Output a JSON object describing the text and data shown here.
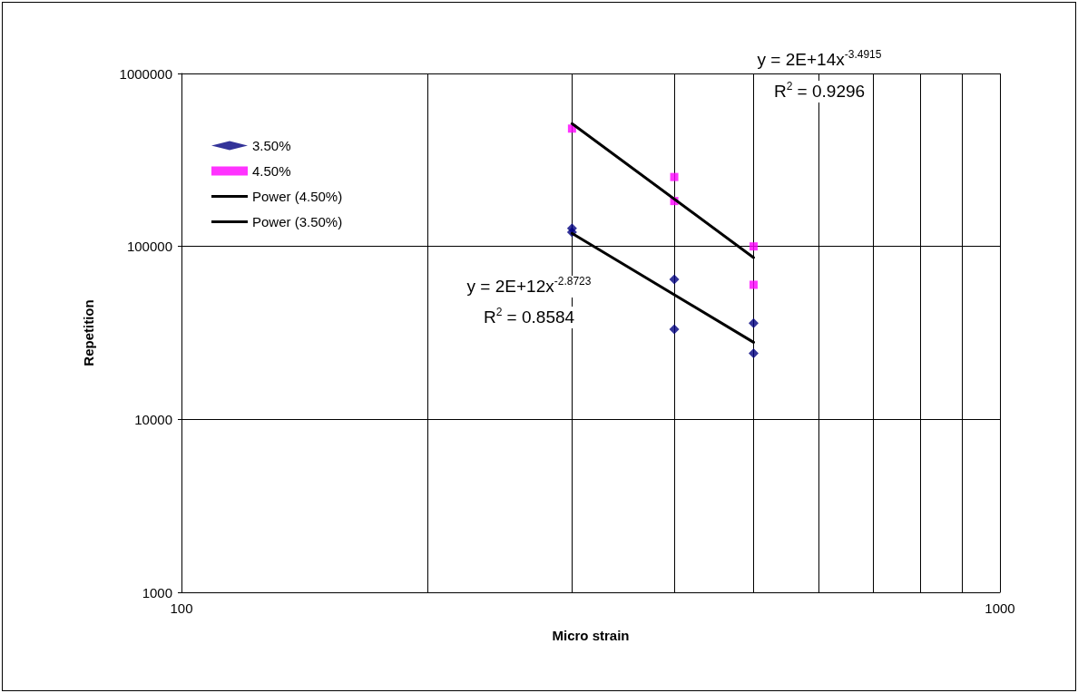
{
  "chart_data": {
    "type": "scatter",
    "xlabel": "Micro strain",
    "ylabel": "Repetition",
    "log": "xy",
    "xlim": [
      100,
      1000
    ],
    "xticks": [
      100,
      {
        "value": 200,
        "label": null
      },
      {
        "value": 300,
        "label": null
      },
      {
        "value": 400,
        "label": null
      },
      {
        "value": 500,
        "label": null
      },
      {
        "value": 600,
        "label": null
      },
      {
        "value": 700,
        "label": null
      },
      {
        "value": 800,
        "label": null
      },
      {
        "value": 900,
        "label": null
      },
      1000
    ],
    "ylim": [
      1000,
      1000000
    ],
    "yticks": [
      1000,
      10000,
      100000,
      1000000
    ],
    "grid": true,
    "legend": "top left",
    "series": [
      {
        "name": "3.50%",
        "color": "#000080",
        "marker": "diamond",
        "x": [
          300,
          300,
          400,
          400,
          500,
          500
        ],
        "values": [
          127000,
          121000,
          64500,
          33200,
          36000,
          24100
        ]
      },
      {
        "name": "4.50%",
        "color": "#ff00ff",
        "marker": "square",
        "x": [
          300,
          400,
          400,
          500,
          500
        ],
        "values": [
          480000,
          252000,
          183000,
          100000,
          60000
        ]
      },
      {
        "name": "Power (4.50%)",
        "type": "line",
        "color": "#000000",
        "marker": "none",
        "x": [
          300,
          500
        ],
        "values": [
          513000,
          86200
        ]
      },
      {
        "name": "Power (3.50%)",
        "type": "line",
        "color": "#000000",
        "marker": "none",
        "x": [
          300,
          500
        ],
        "values": [
          119000,
          27900
        ]
      }
    ],
    "annotations": [
      "y = 2E+14x$^{-3.4915}$",
      "R$^{2}$ = 0.9296",
      "y = 2E+12x$^{-2.8723}$",
      "R$^{2}$ = 0.8584"
    ]
  }
}
